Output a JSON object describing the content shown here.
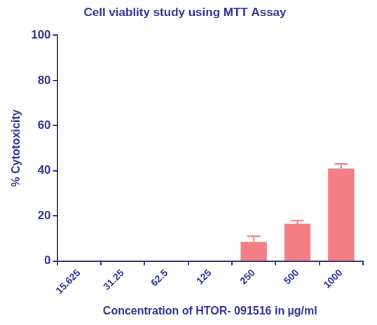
{
  "chart_data": {
    "type": "bar",
    "title": "Cell viablity study using MTT Assay",
    "x_label": "Concentration of HTOR- 091516 in µg/ml",
    "y_label": "% Cytotoxicity",
    "categories": [
      "15.625",
      "31.25",
      "62.5",
      "125",
      "250",
      "500",
      "1000"
    ],
    "values": [
      0,
      0,
      0,
      0,
      8.5,
      16.5,
      41
    ],
    "errors": [
      0,
      0,
      0,
      0,
      2.5,
      1.5,
      2
    ],
    "color": "#f27f84",
    "ylim": [
      0,
      100
    ],
    "yticks": [
      0,
      20,
      40,
      60,
      80,
      100
    ],
    "grid": false
  }
}
